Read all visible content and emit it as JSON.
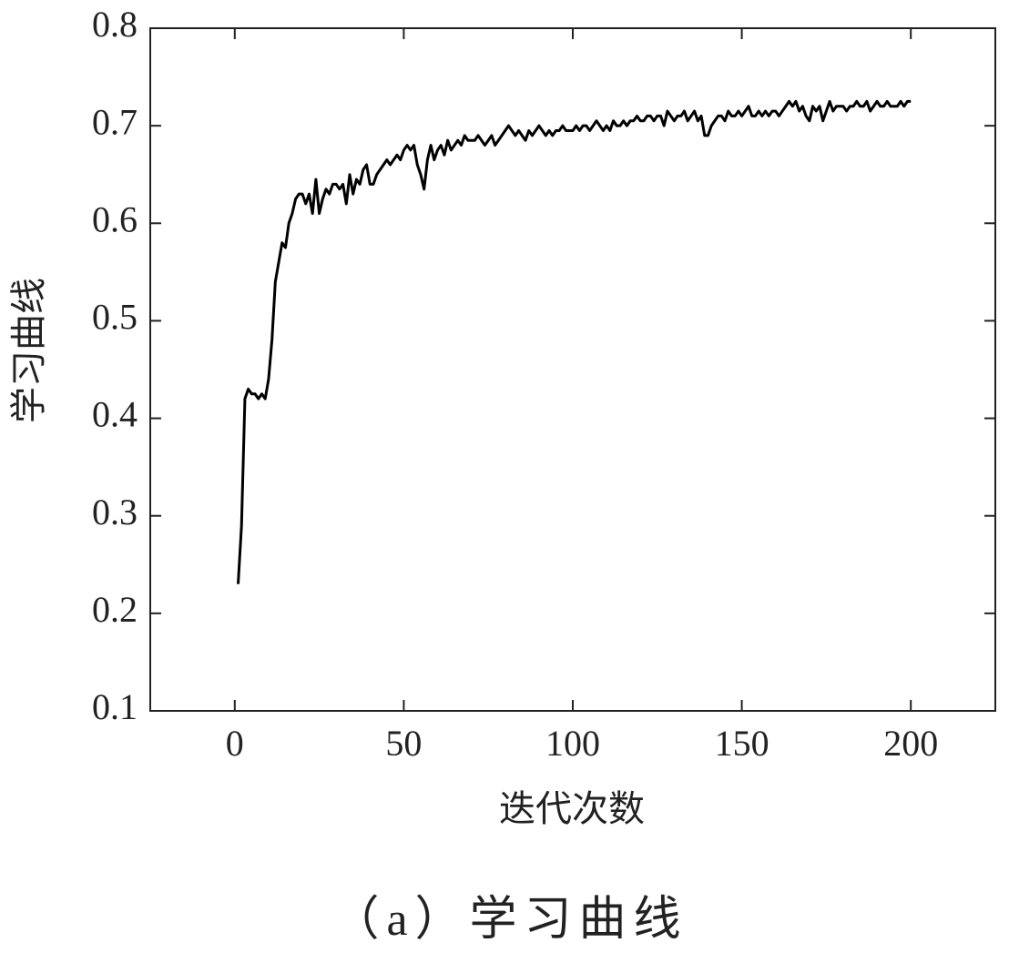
{
  "chart_data": {
    "type": "line",
    "xlabel": "迭代次数",
    "ylabel": "学习曲线",
    "caption": "（a）学习曲线",
    "xlim": [
      -25,
      225
    ],
    "xticks": [
      0,
      50,
      100,
      150,
      200
    ],
    "ylim": [
      0.1,
      0.8
    ],
    "yticks": [
      0.1,
      0.2,
      0.3,
      0.4,
      0.5,
      0.6,
      0.7,
      0.8
    ],
    "x": [
      1,
      2,
      3,
      4,
      5,
      6,
      7,
      8,
      9,
      10,
      11,
      12,
      13,
      14,
      15,
      16,
      17,
      18,
      19,
      20,
      21,
      22,
      23,
      24,
      25,
      26,
      27,
      28,
      29,
      30,
      31,
      32,
      33,
      34,
      35,
      36,
      37,
      38,
      39,
      40,
      41,
      42,
      43,
      44,
      45,
      46,
      47,
      48,
      49,
      50,
      51,
      52,
      53,
      54,
      55,
      56,
      57,
      58,
      59,
      60,
      61,
      62,
      63,
      64,
      65,
      66,
      67,
      68,
      69,
      70,
      71,
      72,
      73,
      74,
      75,
      76,
      77,
      78,
      79,
      80,
      81,
      82,
      83,
      84,
      85,
      86,
      87,
      88,
      89,
      90,
      91,
      92,
      93,
      94,
      95,
      96,
      97,
      98,
      99,
      100,
      101,
      102,
      103,
      104,
      105,
      106,
      107,
      108,
      109,
      110,
      111,
      112,
      113,
      114,
      115,
      116,
      117,
      118,
      119,
      120,
      121,
      122,
      123,
      124,
      125,
      126,
      127,
      128,
      129,
      130,
      131,
      132,
      133,
      134,
      135,
      136,
      137,
      138,
      139,
      140,
      141,
      142,
      143,
      144,
      145,
      146,
      147,
      148,
      149,
      150,
      151,
      152,
      153,
      154,
      155,
      156,
      157,
      158,
      159,
      160,
      161,
      162,
      163,
      164,
      165,
      166,
      167,
      168,
      169,
      170,
      171,
      172,
      173,
      174,
      175,
      176,
      177,
      178,
      179,
      180,
      181,
      182,
      183,
      184,
      185,
      186,
      187,
      188,
      189,
      190,
      191,
      192,
      193,
      194,
      195,
      196,
      197,
      198,
      199,
      200
    ],
    "series": [
      {
        "color": "#000000",
        "values": [
          0.23,
          0.29,
          0.42,
          0.43,
          0.425,
          0.425,
          0.42,
          0.425,
          0.42,
          0.44,
          0.48,
          0.54,
          0.56,
          0.58,
          0.575,
          0.6,
          0.61,
          0.625,
          0.63,
          0.63,
          0.62,
          0.63,
          0.61,
          0.645,
          0.61,
          0.625,
          0.635,
          0.63,
          0.64,
          0.64,
          0.635,
          0.64,
          0.62,
          0.65,
          0.63,
          0.645,
          0.64,
          0.655,
          0.66,
          0.64,
          0.64,
          0.65,
          0.655,
          0.66,
          0.665,
          0.66,
          0.665,
          0.67,
          0.665,
          0.675,
          0.68,
          0.675,
          0.68,
          0.66,
          0.65,
          0.635,
          0.665,
          0.68,
          0.665,
          0.675,
          0.68,
          0.67,
          0.685,
          0.675,
          0.68,
          0.685,
          0.68,
          0.69,
          0.685,
          0.685,
          0.685,
          0.69,
          0.685,
          0.68,
          0.685,
          0.69,
          0.68,
          0.685,
          0.69,
          0.695,
          0.7,
          0.695,
          0.69,
          0.695,
          0.69,
          0.685,
          0.695,
          0.69,
          0.695,
          0.7,
          0.695,
          0.69,
          0.695,
          0.69,
          0.695,
          0.695,
          0.7,
          0.695,
          0.695,
          0.695,
          0.7,
          0.695,
          0.7,
          0.7,
          0.695,
          0.7,
          0.705,
          0.7,
          0.695,
          0.7,
          0.695,
          0.705,
          0.7,
          0.7,
          0.705,
          0.7,
          0.705,
          0.705,
          0.71,
          0.705,
          0.705,
          0.71,
          0.71,
          0.705,
          0.71,
          0.71,
          0.7,
          0.715,
          0.71,
          0.705,
          0.71,
          0.71,
          0.715,
          0.705,
          0.71,
          0.715,
          0.705,
          0.71,
          0.69,
          0.69,
          0.7,
          0.705,
          0.71,
          0.71,
          0.705,
          0.715,
          0.71,
          0.71,
          0.715,
          0.71,
          0.715,
          0.72,
          0.71,
          0.71,
          0.715,
          0.71,
          0.715,
          0.71,
          0.715,
          0.715,
          0.71,
          0.715,
          0.72,
          0.725,
          0.72,
          0.725,
          0.715,
          0.72,
          0.71,
          0.705,
          0.72,
          0.715,
          0.72,
          0.705,
          0.715,
          0.725,
          0.715,
          0.72,
          0.72,
          0.72,
          0.715,
          0.72,
          0.72,
          0.725,
          0.72,
          0.72,
          0.725,
          0.715,
          0.72,
          0.725,
          0.72,
          0.72,
          0.725,
          0.72,
          0.72,
          0.72,
          0.725,
          0.72,
          0.725,
          0.725
        ]
      }
    ]
  }
}
